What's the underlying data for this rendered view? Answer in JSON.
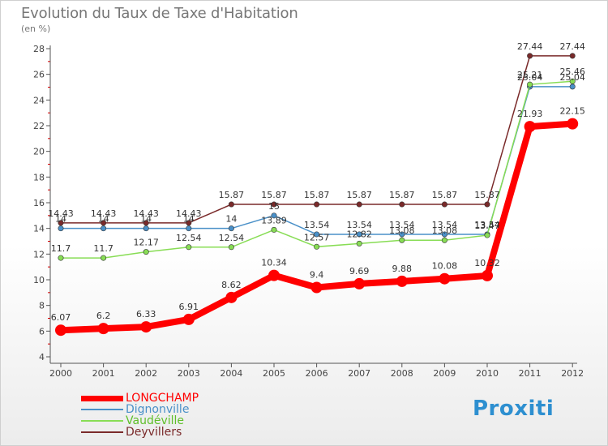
{
  "chart_data": {
    "type": "line",
    "title": "Evolution du Taux de Taxe d'Habitation",
    "ylabel": "(en %)",
    "xlabel": "",
    "ylim": [
      4,
      28
    ],
    "yticks": [
      "4",
      "6",
      "8",
      "10",
      "12",
      "14",
      "16",
      "18",
      "20",
      "22",
      "24",
      "26",
      "28"
    ],
    "categories": [
      "2000",
      "2001",
      "2002",
      "2003",
      "2004",
      "2005",
      "2006",
      "2007",
      "2008",
      "2009",
      "2010",
      "2011",
      "2012"
    ],
    "series": [
      {
        "name": "LONGCHAMP",
        "color": "#ff0000",
        "values": [
          6.07,
          6.2,
          6.33,
          6.91,
          8.62,
          10.34,
          9.4,
          9.69,
          9.88,
          10.08,
          10.32,
          21.93,
          22.15
        ],
        "labels": [
          "6.07",
          "6.2",
          "6.33",
          "6.91",
          "8.62",
          "10.34",
          "9.4",
          "9.69",
          "9.88",
          "10.08",
          "10.32",
          "21.93",
          "22.15"
        ]
      },
      {
        "name": "Dignonville",
        "color": "#4a90c8",
        "values": [
          14,
          14,
          14,
          14,
          14,
          15,
          13.54,
          13.54,
          13.54,
          13.54,
          13.54,
          25.04,
          25.04
        ],
        "labels": [
          "14",
          "14",
          "14",
          "14",
          "14",
          "15",
          "13.54",
          "13.54",
          "13.54",
          "13.54",
          "13.54",
          "25.04",
          "25.04"
        ]
      },
      {
        "name": "Vaudéville",
        "color": "#88dd55",
        "values": [
          11.7,
          11.7,
          12.17,
          12.54,
          12.54,
          13.89,
          12.57,
          12.82,
          13.08,
          13.08,
          13.47,
          25.21,
          25.46
        ],
        "labels": [
          "11.7",
          "11.7",
          "12.17",
          "12.54",
          "12.54",
          "13.89",
          "12.57",
          "12.82",
          "13.08",
          "13.08",
          "13.47",
          "25.21",
          "25.46"
        ]
      },
      {
        "name": "Deyvillers",
        "color": "#7a2a2a",
        "values": [
          14.43,
          14.43,
          14.43,
          14.43,
          15.87,
          15.87,
          15.87,
          15.87,
          15.87,
          15.87,
          15.87,
          27.44,
          27.44
        ],
        "labels": [
          "14.43",
          "14.43",
          "14.43",
          "14.43",
          "15.87",
          "15.87",
          "15.87",
          "15.87",
          "15.87",
          "15.87",
          "15.87",
          "27.44",
          "27.44"
        ]
      }
    ],
    "legend_position": "bottom-left",
    "grid": false
  },
  "legend": {
    "items": [
      {
        "label": "LONGCHAMP",
        "color": "#ff0000",
        "weight": "heavy"
      },
      {
        "label": "Dignonville",
        "color": "#4a90c8",
        "weight": "light"
      },
      {
        "label": "Vaudéville",
        "color": "#88dd55",
        "weight": "light"
      },
      {
        "label": "Deyvillers",
        "color": "#7a2a2a",
        "weight": "light"
      }
    ]
  },
  "brand": {
    "text": "Proxiti"
  }
}
